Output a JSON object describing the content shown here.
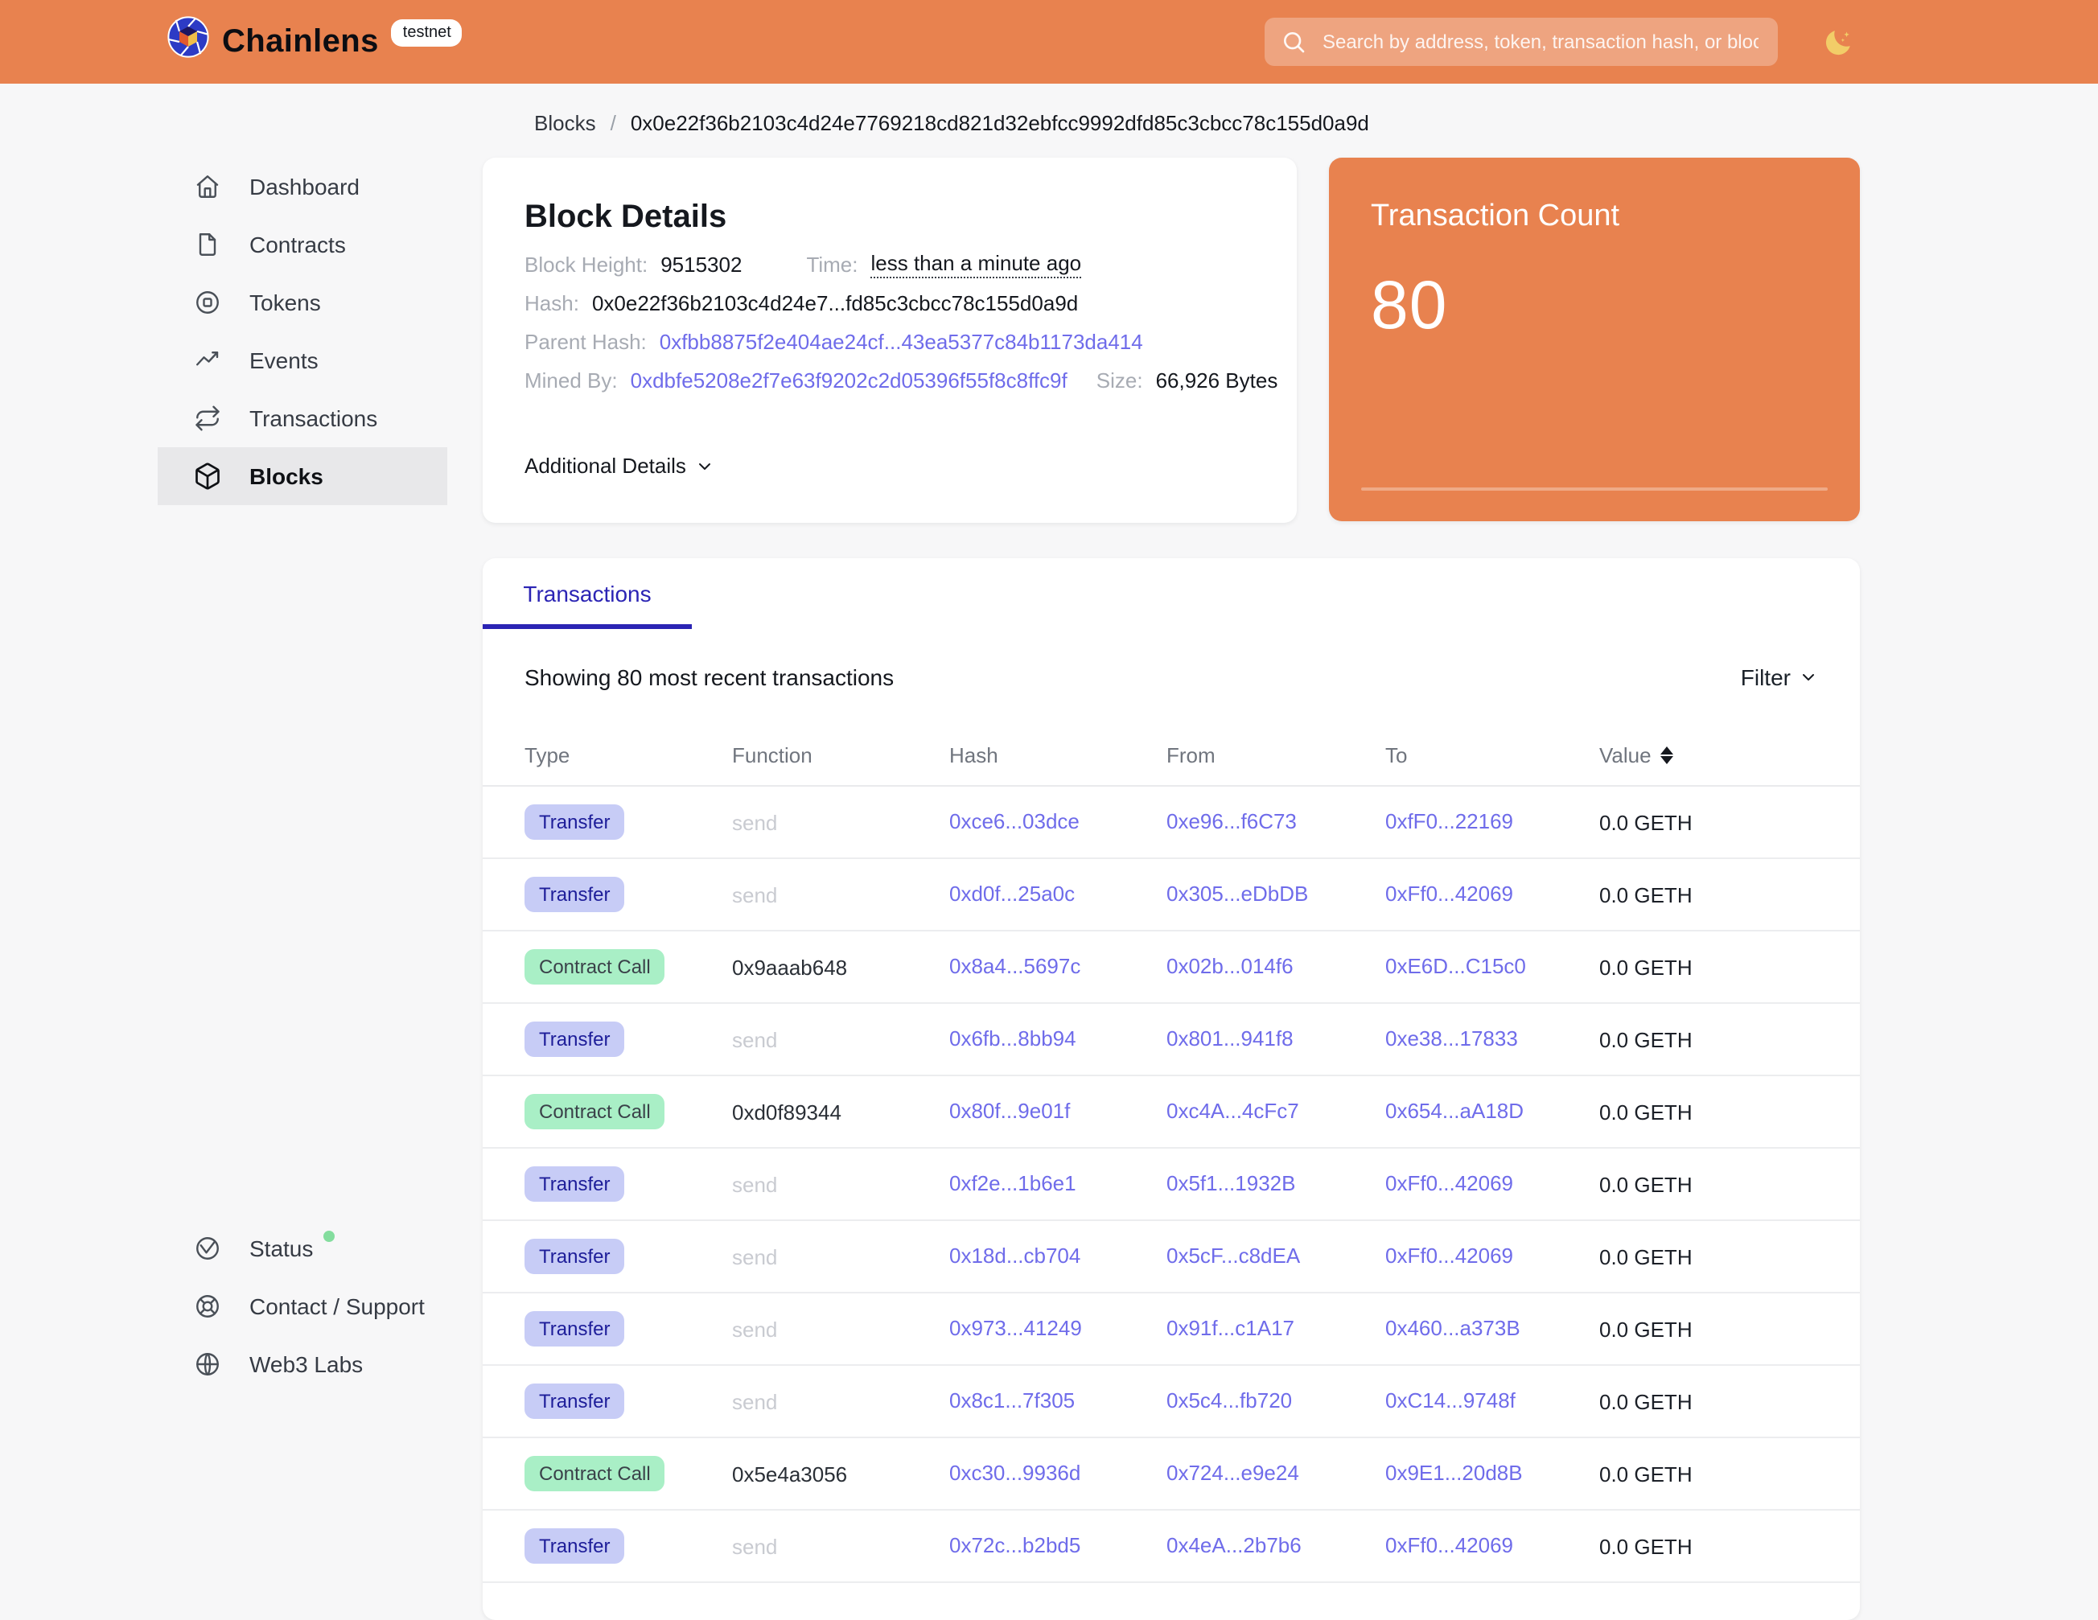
{
  "header": {
    "brand": "Chainlens",
    "env_badge": "testnet",
    "search_placeholder": "Search by address, token, transaction hash, or block number"
  },
  "breadcrumb": {
    "section": "Blocks",
    "separator": "/",
    "current": "0x0e22f36b2103c4d24e7769218cd821d32ebfcc9992dfd85c3cbcc78c155d0a9d"
  },
  "sidebar": {
    "items": [
      {
        "id": "dashboard",
        "label": "Dashboard",
        "icon": "i-home",
        "active": false
      },
      {
        "id": "contracts",
        "label": "Contracts",
        "icon": "i-file",
        "active": false
      },
      {
        "id": "tokens",
        "label": "Tokens",
        "icon": "i-token",
        "active": false
      },
      {
        "id": "events",
        "label": "Events",
        "icon": "i-activity",
        "active": false
      },
      {
        "id": "transactions",
        "label": "Transactions",
        "icon": "i-repeat",
        "active": false
      },
      {
        "id": "blocks",
        "label": "Blocks",
        "icon": "i-cube",
        "active": true
      }
    ],
    "footer_items": [
      {
        "id": "status",
        "label": "Status",
        "icon": "i-status",
        "status_dot": true
      },
      {
        "id": "contact-support",
        "label": "Contact / Support",
        "icon": "i-lifebuoy",
        "status_dot": false
      },
      {
        "id": "web3-labs",
        "label": "Web3 Labs",
        "icon": "i-globe",
        "status_dot": false
      }
    ]
  },
  "block_details": {
    "title": "Block Details",
    "block_height_label": "Block Height:",
    "block_height": "9515302",
    "time_label": "Time:",
    "time": "less than a minute ago",
    "hash_label": "Hash:",
    "hash": "0x0e22f36b2103c4d24e7...fd85c3cbcc78c155d0a9d",
    "parent_hash_label": "Parent Hash:",
    "parent_hash": "0xfbb8875f2e404ae24cf...43ea5377c84b1173da414",
    "mined_by_label": "Mined By:",
    "mined_by": "0xdbfe5208e2f7e63f9202c2d05396f55f8c8ffc9f",
    "size_label": "Size:",
    "size": "66,926 Bytes",
    "additional_details_label": "Additional Details"
  },
  "transaction_count": {
    "title": "Transaction Count",
    "value": "80"
  },
  "transactions": {
    "tab_label": "Transactions",
    "summary": "Showing 80 most recent transactions",
    "filter_label": "Filter",
    "columns": [
      "Type",
      "Function",
      "Hash",
      "From",
      "To",
      "Value"
    ],
    "sortable_column": "Value",
    "value_unit": "GETH",
    "rows": [
      {
        "type": "Transfer",
        "function": "send",
        "hash": "0xce6...03dce",
        "from": "0xe96...f6C73",
        "to": "0xfF0...22169",
        "value": "0.0 GETH"
      },
      {
        "type": "Transfer",
        "function": "send",
        "hash": "0xd0f...25a0c",
        "from": "0x305...eDbDB",
        "to": "0xFf0...42069",
        "value": "0.0 GETH"
      },
      {
        "type": "Contract Call",
        "function": "0x9aaab648",
        "hash": "0x8a4...5697c",
        "from": "0x02b...014f6",
        "to": "0xE6D...C15c0",
        "value": "0.0 GETH"
      },
      {
        "type": "Transfer",
        "function": "send",
        "hash": "0x6fb...8bb94",
        "from": "0x801...941f8",
        "to": "0xe38...17833",
        "value": "0.0 GETH"
      },
      {
        "type": "Contract Call",
        "function": "0xd0f89344",
        "hash": "0x80f...9e01f",
        "from": "0xc4A...4cFc7",
        "to": "0x654...aA18D",
        "value": "0.0 GETH"
      },
      {
        "type": "Transfer",
        "function": "send",
        "hash": "0xf2e...1b6e1",
        "from": "0x5f1...1932B",
        "to": "0xFf0...42069",
        "value": "0.0 GETH"
      },
      {
        "type": "Transfer",
        "function": "send",
        "hash": "0x18d...cb704",
        "from": "0x5cF...c8dEA",
        "to": "0xFf0...42069",
        "value": "0.0 GETH"
      },
      {
        "type": "Transfer",
        "function": "send",
        "hash": "0x973...41249",
        "from": "0x91f...c1A17",
        "to": "0x460...a373B",
        "value": "0.0 GETH"
      },
      {
        "type": "Transfer",
        "function": "send",
        "hash": "0x8c1...7f305",
        "from": "0x5c4...fb720",
        "to": "0xC14...9748f",
        "value": "0.0 GETH"
      },
      {
        "type": "Contract Call",
        "function": "0x5e4a3056",
        "hash": "0xc30...9936d",
        "from": "0x724...e9e24",
        "to": "0x9E1...20d8B",
        "value": "0.0 GETH"
      },
      {
        "type": "Transfer",
        "function": "send",
        "hash": "0x72c...b2bd5",
        "from": "0x4eA...2b7b6",
        "to": "0xFf0...42069",
        "value": "0.0 GETH"
      }
    ]
  },
  "colors": {
    "header_orange": "#E8824F",
    "page_bg": "#F7F7F8",
    "link_indigo": "#6F6CEA",
    "tab_indigo": "#2B24B4",
    "badge_transfer_bg": "#C7CCF6",
    "badge_transfer_text": "#1D1D99",
    "badge_contract_bg": "#A9EFC6",
    "status_dot_green": "#84DD9E"
  }
}
